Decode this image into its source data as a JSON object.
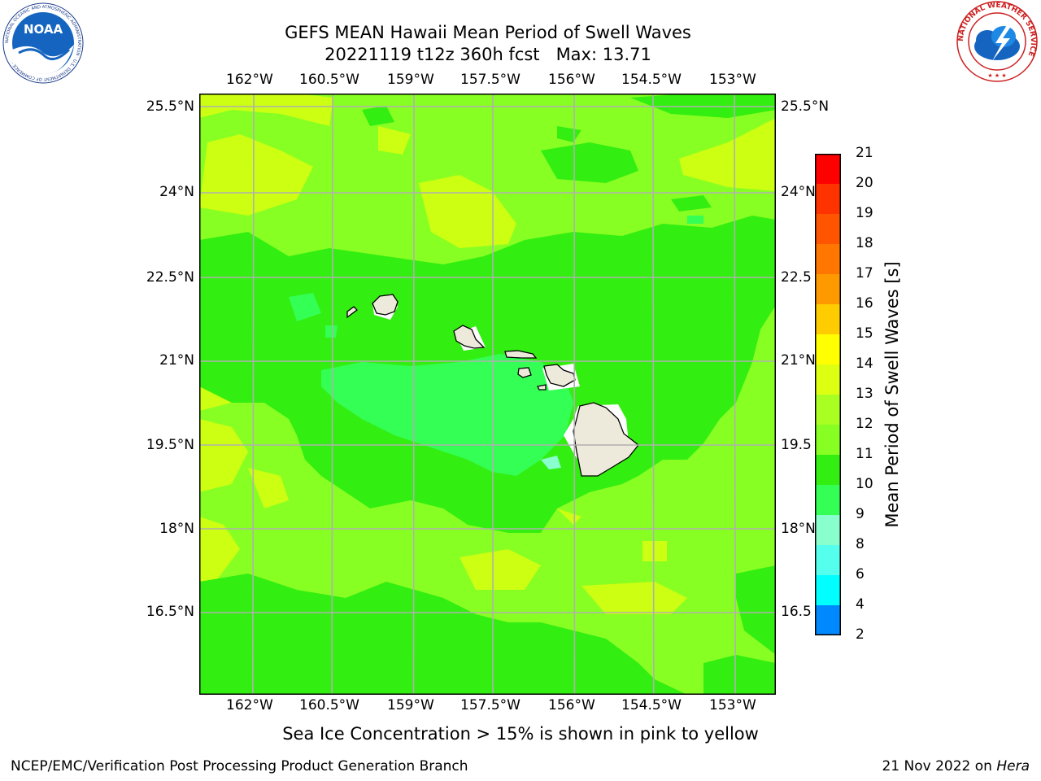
{
  "header": {
    "title_line1": "GEFS MEAN Hawaii Mean Period of Swell Waves",
    "title_line2": "20221119 t12z 360h fcst   Max: 13.71"
  },
  "logos": {
    "noaa_text": "NOAA",
    "noaa_ring": "NATIONAL OCEANIC AND ATMOSPHERIC ADMINISTRATION · U.S. DEPARTMENT OF COMMERCE ·",
    "nws_ring": "NATIONAL WEATHER SERVICE"
  },
  "map": {
    "region": "Hawaii",
    "lon_labels": [
      "162°W",
      "160.5°W",
      "159°W",
      "157.5°W",
      "156°W",
      "154.5°W",
      "153°W"
    ],
    "lat_labels": [
      "25.5°N",
      "24°N",
      "22.5°N",
      "21°N",
      "19.5°N",
      "18°N",
      "16.5°N"
    ],
    "right_lat_labels": [
      "25.5°N",
      "24°N",
      "22.5",
      "21°N",
      "19.5",
      "18°N",
      "16.5"
    ],
    "gridline_color": "#b0b0b0",
    "land_color": "#eeeadb",
    "field_colors": {
      "10-11": "#33ff55",
      "11-12": "#33ee11",
      "12-13": "#88ff22",
      "13-14": "#ccff11"
    }
  },
  "colorbar": {
    "title": "Mean Period of Swell Waves [s]",
    "ticks": [
      "21",
      "20",
      "19",
      "18",
      "17",
      "16",
      "15",
      "14",
      "13",
      "12",
      "11",
      "10",
      "9",
      "8",
      "6",
      "4",
      "2"
    ],
    "colors": [
      "#ff0000",
      "#ff3300",
      "#ff5500",
      "#ff7700",
      "#ff9900",
      "#ffcc00",
      "#ffff00",
      "#ddff11",
      "#aaff22",
      "#88ff22",
      "#33ee11",
      "#33ff55",
      "#88ffcc",
      "#55ffee",
      "#00ffff",
      "#0088ff",
      "#0000ff"
    ]
  },
  "footer": {
    "note": "Sea Ice Concentration > 15% is shown in pink to yellow",
    "producer": "NCEP/EMC/Verification Post Processing Product Generation Branch",
    "date": "21 Nov 2022 on ",
    "host": "Hera"
  }
}
